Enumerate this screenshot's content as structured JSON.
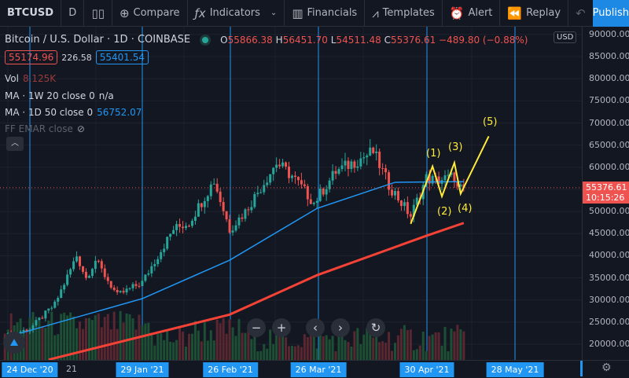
{
  "toolbar": {
    "symbol": "BTCUSD",
    "interval": "D",
    "compare": "Compare",
    "indicators": "Indicators",
    "financials": "Financials",
    "templates": "Templates",
    "alert": "Alert",
    "replay": "Replay",
    "publish": "Publish"
  },
  "legend": {
    "title": "Bitcoin / U.S. Dollar · 1D · COINBASE",
    "open_label": "O",
    "open": "55866.38",
    "high_label": "H",
    "high": "56451.70",
    "low_label": "L",
    "low": "54511.48",
    "close_label": "C",
    "close": "55376.61",
    "change": "−489.80 (−0.88%)",
    "bid": "55174.96",
    "spread": "226.58",
    "ask": "55401.54",
    "vol_label": "Vol",
    "vol": "8.125K",
    "ma1_label": "MA · 1W 20 close 0",
    "ma1_value": "n/a",
    "ma2_label": "MA · 1D 50 close 0",
    "ma2_value": "56752.07",
    "ff_label": "FF EMAR close",
    "collapse": "︿"
  },
  "price_axis": {
    "currency": "USD",
    "ticks": [
      "90000.00",
      "85000.00",
      "80000.00",
      "75000.00",
      "70000.00",
      "65000.00",
      "60000.00",
      "50000.00",
      "45000.00",
      "40000.00",
      "35000.00",
      "30000.00",
      "25000.00",
      "20000.00"
    ],
    "last_price": "55376.61",
    "countdown": "10:15:26"
  },
  "time_axis": {
    "labels": [
      "24 Dec '20",
      "29 Jan '21",
      "26 Feb '21",
      "26 Mar '21",
      "30 Apr '21",
      "28 May '21"
    ],
    "partial": "21"
  },
  "colors": {
    "up": "#26a69a",
    "down": "#ef5350",
    "ma50": "#2196f3",
    "ma_slow": "#f44336",
    "wave": "#ffeb3b",
    "accent": "#1e88e5"
  },
  "chart_data": {
    "type": "candlestick",
    "symbol": "BTCUSD",
    "interval": "1D",
    "ylim": [
      17000,
      91000
    ],
    "close_anchors": [
      [
        "2020-12-16",
        21800
      ],
      [
        "2020-12-24",
        23500
      ],
      [
        "2021-01-01",
        29000
      ],
      [
        "2021-01-08",
        40000
      ],
      [
        "2021-01-11",
        35000
      ],
      [
        "2021-01-14",
        39000
      ],
      [
        "2021-01-21",
        31000
      ],
      [
        "2021-01-29",
        34000
      ],
      [
        "2021-02-08",
        46000
      ],
      [
        "2021-02-13",
        47500
      ],
      [
        "2021-02-21",
        57000
      ],
      [
        "2021-02-26",
        46000
      ],
      [
        "2021-03-03",
        50000
      ],
      [
        "2021-03-13",
        61000
      ],
      [
        "2021-03-18",
        58000
      ],
      [
        "2021-03-25",
        52000
      ],
      [
        "2021-04-01",
        59000
      ],
      [
        "2021-04-13",
        63500
      ],
      [
        "2021-04-18",
        56000
      ],
      [
        "2021-04-25",
        49000
      ],
      [
        "2021-04-30",
        57500
      ],
      [
        "2021-05-03",
        57000
      ],
      [
        "2021-05-07",
        57500
      ],
      [
        "2021-05-09",
        58000
      ],
      [
        "2021-05-10",
        55000
      ],
      [
        "2021-05-12",
        55376.61
      ]
    ],
    "ma50_anchors": [
      [
        "2020-12-16",
        21500
      ],
      [
        "2021-01-29",
        30300
      ],
      [
        "2021-02-26",
        39000
      ],
      [
        "2021-03-26",
        50700
      ],
      [
        "2021-04-20",
        56600
      ],
      [
        "2021-05-12",
        56752
      ]
    ],
    "ma_slow_anchors": [
      [
        "2020-12-30",
        16500
      ],
      [
        "2021-02-26",
        26700
      ],
      [
        "2021-03-26",
        35600
      ],
      [
        "2021-04-30",
        44500
      ],
      [
        "2021-05-12",
        47400
      ]
    ],
    "elliott_wave": {
      "points": [
        [
          "2021-04-25",
          47200
        ],
        [
          "2021-05-02",
          60200
        ],
        [
          "2021-05-05",
          53400
        ],
        [
          "2021-05-09",
          61000
        ],
        [
          "2021-05-11",
          54000
        ],
        [
          "2021-05-20",
          67000
        ]
      ],
      "labels": [
        "(1)",
        "(2)",
        "(3)",
        "(4)",
        "(5)"
      ]
    }
  }
}
